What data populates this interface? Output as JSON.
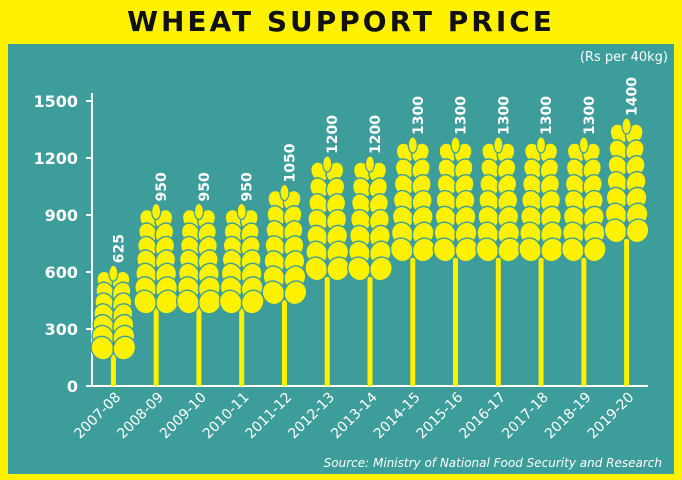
{
  "header": {
    "title": "WHEAT SUPPORT PRICE"
  },
  "footer": {
    "source": "Source: Ministry of National Food Security and Research"
  },
  "colors": {
    "background": "#3d9d9b",
    "frame": "#fff200",
    "wheat": "#fff200",
    "text": "#ffffff"
  },
  "chart_data": {
    "type": "bar",
    "title": "WHEAT SUPPORT PRICE",
    "ylabel": "(Rs per 40kg)",
    "xlabel": "",
    "ylim": [
      0,
      1500
    ],
    "yticks": [
      "0",
      "300",
      "600",
      "900",
      "1200",
      "1500"
    ],
    "categories": [
      "2007-08",
      "2008-09",
      "2009-10",
      "2010-11",
      "2011-12",
      "2012-13",
      "2013-14",
      "2014-15",
      "2015-16",
      "2016-17",
      "2017-18",
      "2018-19",
      "2019-20"
    ],
    "values": [
      625,
      950,
      950,
      950,
      1050,
      1200,
      1200,
      1300,
      1300,
      1300,
      1300,
      1300,
      1400
    ],
    "value_labels": [
      "625",
      "950",
      "950",
      "950",
      "1050",
      "1200",
      "1200",
      "1300",
      "1300",
      "1300",
      "1300",
      "1300",
      "1400"
    ],
    "mark_icon": "wheat-stalk-icon",
    "grid": false,
    "legend": "none"
  }
}
